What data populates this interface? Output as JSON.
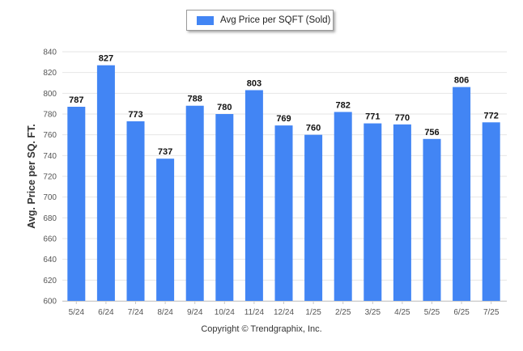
{
  "chart_data": {
    "type": "bar",
    "categories": [
      "5/24",
      "6/24",
      "7/24",
      "8/24",
      "9/24",
      "10/24",
      "11/24",
      "12/24",
      "1/25",
      "2/25",
      "3/25",
      "4/25",
      "5/25",
      "6/25",
      "7/25"
    ],
    "series": [
      {
        "name": "Avg Price per SQFT (Sold)",
        "values": [
          787,
          827,
          773,
          737,
          788,
          780,
          803,
          769,
          760,
          782,
          771,
          770,
          756,
          806,
          772
        ]
      }
    ],
    "ylabel": "Avg. Price per SQ. FT.",
    "xlabel": "",
    "ylim": [
      600,
      840
    ],
    "yticks": [
      600,
      620,
      640,
      660,
      680,
      700,
      720,
      740,
      760,
      780,
      800,
      820,
      840
    ],
    "grid": true,
    "legend_position": "top-center",
    "data_labels": true,
    "bar_color": "#4285f4"
  },
  "legend": {
    "label": "Avg Price per SQFT (Sold)",
    "color": "#4285f4"
  },
  "footer": {
    "copyright": "Copyright © Trendgraphix, Inc."
  }
}
